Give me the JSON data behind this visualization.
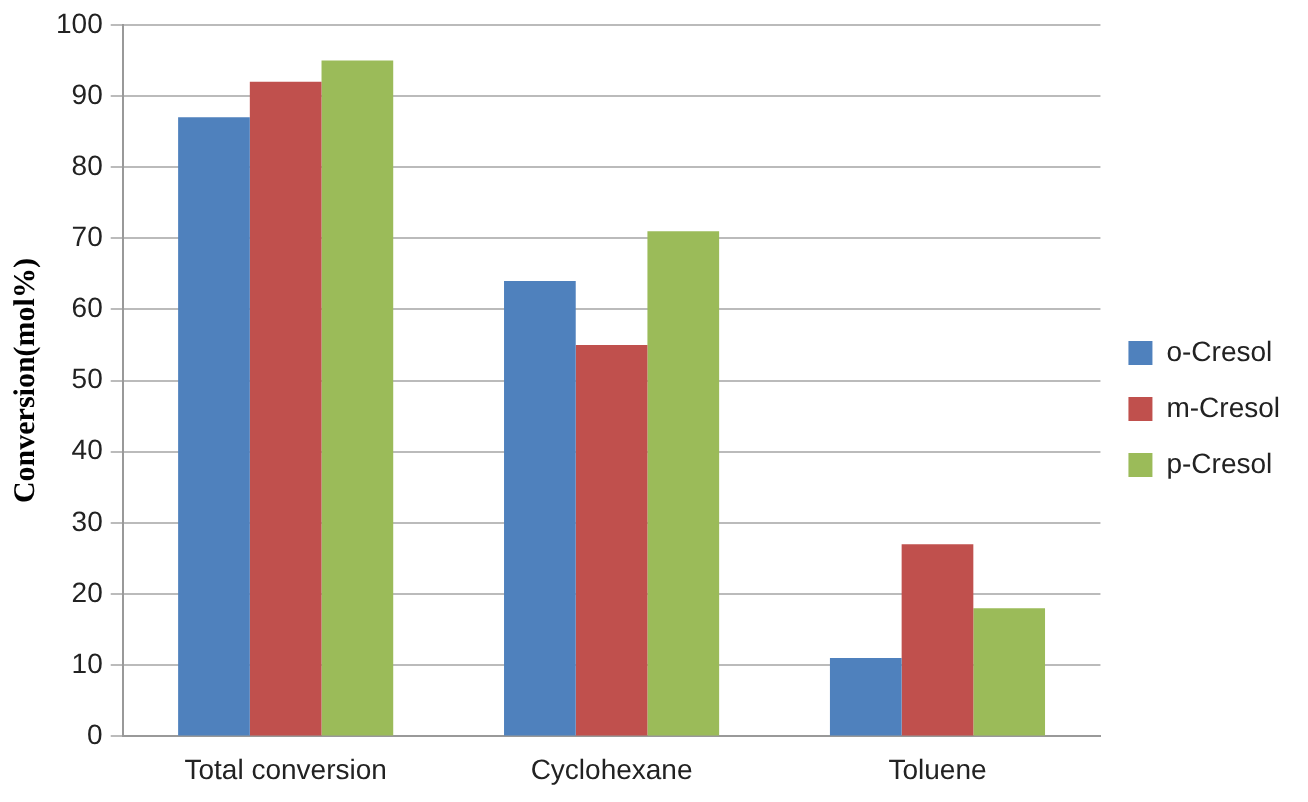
{
  "chart_data": {
    "type": "bar",
    "ylabel": "Conversion(mol%)",
    "categories": [
      "Total conversion",
      "Cyclohexane",
      "Toluene"
    ],
    "series": [
      {
        "name": "o-Cresol",
        "color": "#4f81bd",
        "values": [
          87,
          64,
          11
        ]
      },
      {
        "name": "m-Cresol",
        "color": "#c0504d",
        "values": [
          92,
          55,
          27
        ]
      },
      {
        "name": "p-Cresol",
        "color": "#9bbb59",
        "values": [
          95,
          71,
          18
        ]
      }
    ],
    "ylim": [
      0,
      100
    ],
    "yticks": [
      0,
      10,
      20,
      30,
      40,
      50,
      60,
      70,
      80,
      90,
      100
    ],
    "grid": "y",
    "legend": "right"
  }
}
